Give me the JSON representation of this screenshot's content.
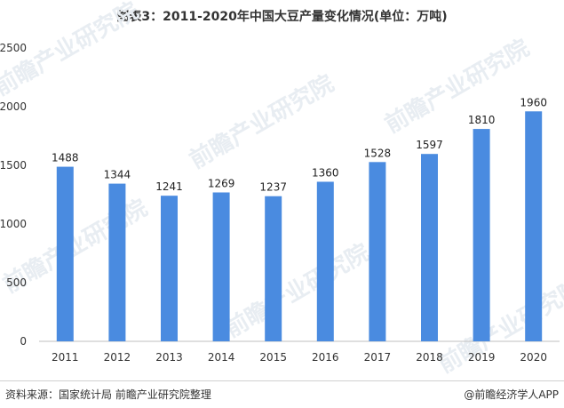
{
  "chart_data": {
    "type": "bar",
    "title": "图表3：2011-2020年中国大豆产量变化情况(单位：万吨)",
    "categories": [
      "2011",
      "2012",
      "2013",
      "2014",
      "2015",
      "2016",
      "2017",
      "2018",
      "2019",
      "2020"
    ],
    "values": [
      1488,
      1344,
      1241,
      1269,
      1237,
      1360,
      1528,
      1597,
      1810,
      1960
    ],
    "ylim": [
      0,
      2500
    ],
    "yticks": [
      0,
      500,
      1000,
      1500,
      2000,
      2500
    ],
    "bar_color": "#4a8be0",
    "data_labels": true,
    "grid": false,
    "legend": "none"
  },
  "footer": {
    "source": "资料来源：国家统计局 前瞻产业研究院整理",
    "credit": "@前瞻经济学人APP"
  },
  "watermark": {
    "text": "前瞻产业研究院"
  }
}
